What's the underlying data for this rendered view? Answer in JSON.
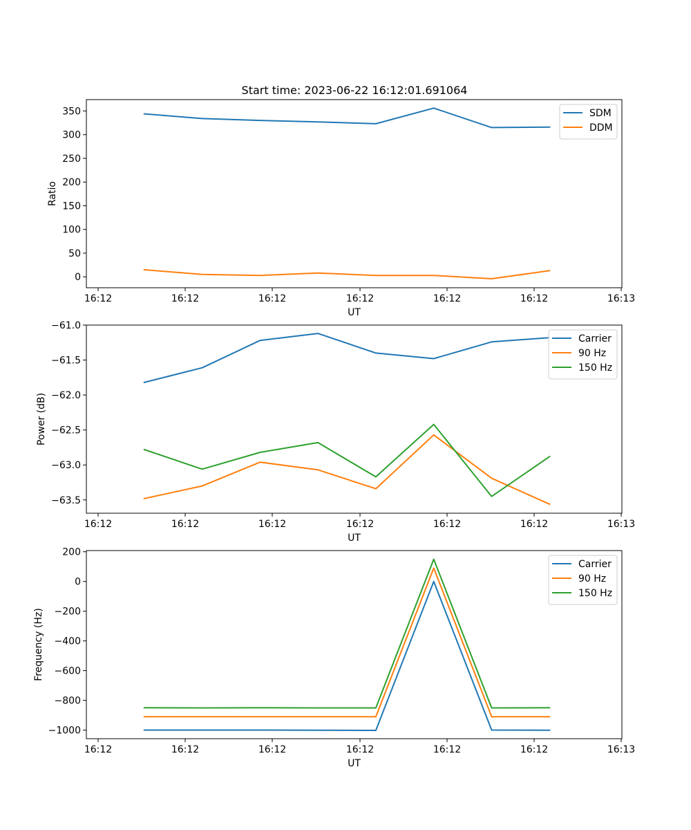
{
  "figure": {
    "title": "Start time: 2023-06-22 16:12:01.691064"
  },
  "chart_data": [
    {
      "type": "line",
      "xlabel": "UT",
      "ylabel": "Ratio",
      "x_tick_labels": [
        "16:12",
        "16:12",
        "16:12",
        "16:12",
        "16:12",
        "16:12",
        "16:13"
      ],
      "x": [
        1,
        2,
        3,
        4,
        5,
        6,
        7,
        8
      ],
      "xlim": [
        0,
        9.25
      ],
      "ylim": [
        -23,
        374
      ],
      "yticks": [
        0,
        50,
        100,
        150,
        200,
        250,
        300,
        350
      ],
      "legend_position": "upper right",
      "series": [
        {
          "name": "SDM",
          "color": "#1f77b4",
          "values": [
            344,
            334,
            330,
            327,
            323,
            356,
            315,
            316
          ]
        },
        {
          "name": "DDM",
          "color": "#ff7f0e",
          "values": [
            15,
            5,
            3,
            8,
            3,
            3,
            -4,
            13
          ]
        }
      ]
    },
    {
      "type": "line",
      "xlabel": "UT",
      "ylabel": "Power (dB)",
      "x_tick_labels": [
        "16:12",
        "16:12",
        "16:12",
        "16:12",
        "16:12",
        "16:12",
        "16:13"
      ],
      "x": [
        1,
        2,
        3,
        4,
        5,
        6,
        7,
        8
      ],
      "xlim": [
        0,
        9.25
      ],
      "ylim": [
        -63.69,
        -61.0
      ],
      "yticks": [
        -63.5,
        -63.0,
        -62.5,
        -62.0,
        -61.5,
        -61.0
      ],
      "legend_position": "upper right",
      "series": [
        {
          "name": "Carrier",
          "color": "#1f77b4",
          "values": [
            -61.82,
            -61.61,
            -61.22,
            -61.12,
            -61.4,
            -61.48,
            -61.24,
            -61.18
          ]
        },
        {
          "name": "90 Hz",
          "color": "#ff7f0e",
          "values": [
            -63.48,
            -63.3,
            -62.96,
            -63.07,
            -63.34,
            -62.57,
            -63.19,
            -63.56
          ]
        },
        {
          "name": "150 Hz",
          "color": "#2ca02c",
          "values": [
            -62.78,
            -63.06,
            -62.82,
            -62.68,
            -63.17,
            -62.42,
            -63.45,
            -62.88
          ]
        }
      ]
    },
    {
      "type": "line",
      "xlabel": "UT",
      "ylabel": "Frequency (Hz)",
      "x_tick_labels": [
        "16:12",
        "16:12",
        "16:12",
        "16:12",
        "16:12",
        "16:12",
        "16:13"
      ],
      "x": [
        1,
        2,
        3,
        4,
        5,
        6,
        7,
        8
      ],
      "xlim": [
        0,
        9.25
      ],
      "ylim": [
        -1058,
        208
      ],
      "yticks": [
        -1000,
        -800,
        -600,
        -400,
        -200,
        0,
        200
      ],
      "legend_position": "upper right",
      "series": [
        {
          "name": "Carrier",
          "color": "#1f77b4",
          "values": [
            -1000,
            -1000,
            -1000,
            -1001,
            -1002,
            0,
            -1000,
            -1001
          ]
        },
        {
          "name": "90 Hz",
          "color": "#ff7f0e",
          "values": [
            -910,
            -910,
            -910,
            -910,
            -910,
            90,
            -910,
            -910
          ]
        },
        {
          "name": "150 Hz",
          "color": "#2ca02c",
          "values": [
            -850,
            -851,
            -850,
            -851,
            -851,
            150,
            -851,
            -850
          ]
        }
      ]
    }
  ]
}
